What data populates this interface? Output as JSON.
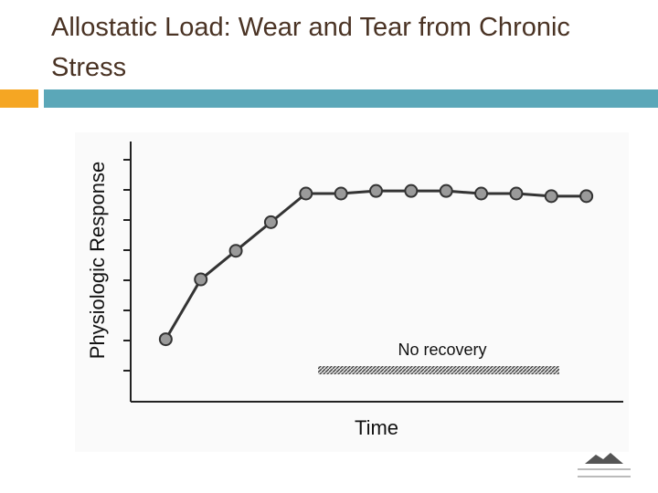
{
  "chart_data": {
    "type": "line",
    "title": "Allostatic Load: Wear and Tear from Chronic Stress",
    "y_label": "Physiologic Response",
    "x_label": "Time",
    "annotation": "No recovery",
    "x": [
      1,
      2,
      3,
      4,
      5,
      6,
      7,
      8,
      9,
      10,
      11,
      12,
      13
    ],
    "xlim": [
      0,
      14
    ],
    "ylim": [
      0,
      10
    ],
    "series": [
      {
        "color": "#333333",
        "values": [
          2.4,
          4.7,
          5.8,
          6.9,
          8.0,
          8.0,
          8.1,
          8.1,
          8.1,
          8.0,
          8.0,
          7.9,
          7.9
        ]
      }
    ]
  }
}
